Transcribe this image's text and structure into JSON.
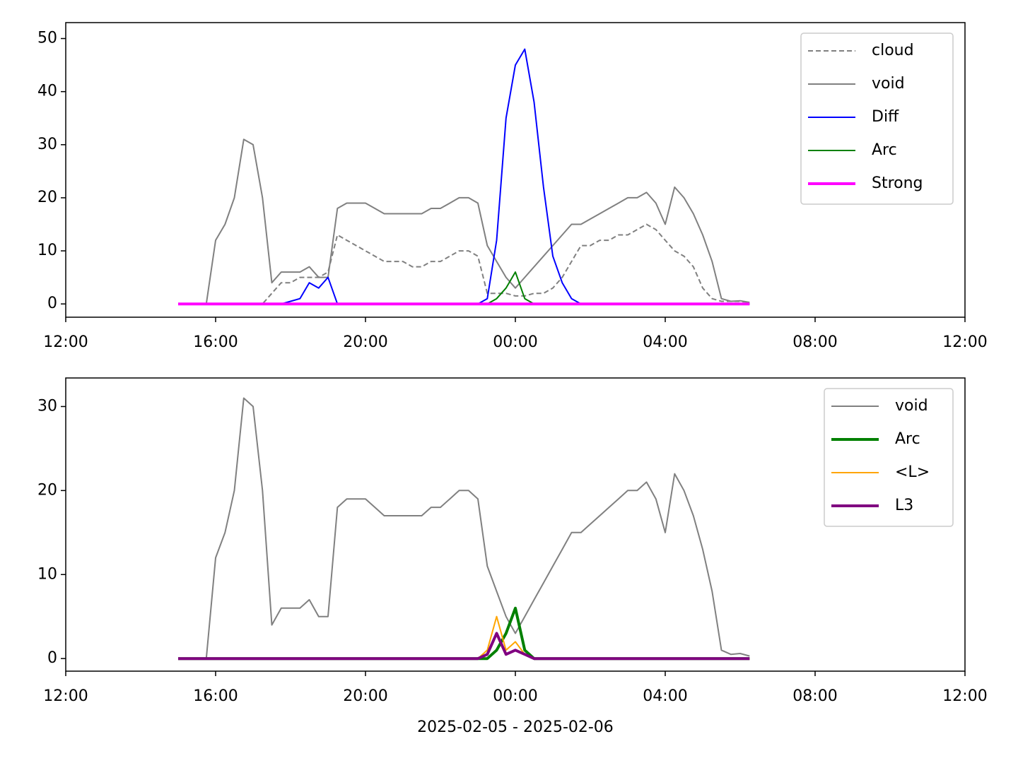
{
  "chart_data": [
    {
      "type": "line",
      "x": [
        15.0,
        15.25,
        15.5,
        15.75,
        16.0,
        16.25,
        16.5,
        16.75,
        17.0,
        17.25,
        17.5,
        17.75,
        18.0,
        18.25,
        18.5,
        18.75,
        19.0,
        19.25,
        19.5,
        19.75,
        20.0,
        20.25,
        20.5,
        20.75,
        21.0,
        21.25,
        21.5,
        21.75,
        22.0,
        22.25,
        22.5,
        22.75,
        23.0,
        23.25,
        23.5,
        23.75,
        24.0,
        24.25,
        24.5,
        24.75,
        25.0,
        25.25,
        25.5,
        25.75,
        26.0,
        26.25,
        26.5,
        26.75,
        27.0,
        27.25,
        27.5,
        27.75,
        28.0,
        28.25,
        28.5,
        28.75,
        29.0,
        29.25,
        29.5,
        29.75,
        30.0,
        30.25
      ],
      "xlim": [
        12,
        36
      ],
      "xticks": [
        {
          "value": 12,
          "label": "12:00"
        },
        {
          "value": 16,
          "label": "16:00"
        },
        {
          "value": 20,
          "label": "20:00"
        },
        {
          "value": 24,
          "label": "00:00"
        },
        {
          "value": 28,
          "label": "04:00"
        },
        {
          "value": 32,
          "label": "08:00"
        },
        {
          "value": 36,
          "label": "12:00"
        }
      ],
      "ylim": [
        -2.5,
        53
      ],
      "yticks": [
        0,
        10,
        20,
        30,
        40,
        50
      ],
      "legend": "upper right",
      "series": [
        {
          "name": "cloud",
          "color": "#808080",
          "style": "dashed",
          "width": 2,
          "values": [
            0,
            0,
            0,
            0,
            0,
            0,
            0,
            0,
            0,
            0,
            2,
            4,
            4,
            5,
            5,
            5,
            6,
            13,
            12,
            11,
            10,
            9,
            8,
            8,
            8,
            7,
            7,
            8,
            8,
            9,
            10,
            10,
            9,
            2,
            2,
            2,
            1.5,
            1.5,
            2,
            2,
            3,
            5,
            8,
            11,
            11,
            12,
            12,
            13,
            13,
            14,
            15,
            14,
            12,
            10,
            9,
            7,
            3,
            1,
            0.5,
            0.5,
            0.5,
            0.3
          ]
        },
        {
          "name": "void",
          "color": "#808080",
          "style": "solid",
          "width": 2,
          "values": [
            0,
            0,
            0,
            0,
            12,
            15,
            20,
            31,
            30,
            20,
            4,
            6,
            6,
            6,
            7,
            5,
            5,
            18,
            19,
            19,
            19,
            18,
            17,
            17,
            17,
            17,
            17,
            18,
            18,
            19,
            20,
            20,
            19,
            11,
            8,
            5,
            3,
            5,
            7,
            9,
            11,
            13,
            15,
            15,
            16,
            17,
            18,
            19,
            20,
            20,
            21,
            19,
            15,
            22,
            20,
            17,
            13,
            8,
            1,
            0.5,
            0.6,
            0.3
          ]
        },
        {
          "name": "Diff",
          "color": "#0000ff",
          "style": "solid",
          "width": 2,
          "values": [
            0,
            0,
            0,
            0,
            0,
            0,
            0,
            0,
            0,
            0,
            0,
            0,
            0.5,
            1,
            4,
            3,
            5,
            0,
            0,
            0,
            0,
            0,
            0,
            0,
            0,
            0,
            0,
            0,
            0,
            0,
            0,
            0,
            0,
            1,
            12,
            35,
            45,
            48,
            38,
            22,
            9,
            4,
            1,
            0,
            0,
            0,
            0,
            0,
            0,
            0,
            0,
            0,
            0,
            0,
            0,
            0,
            0,
            0,
            0,
            0,
            0,
            0
          ]
        },
        {
          "name": "Arc",
          "color": "#008000",
          "style": "solid",
          "width": 2,
          "values": [
            0,
            0,
            0,
            0,
            0,
            0,
            0,
            0,
            0,
            0,
            0,
            0,
            0,
            0,
            0,
            0,
            0,
            0,
            0,
            0,
            0,
            0,
            0,
            0,
            0,
            0,
            0,
            0,
            0,
            0,
            0,
            0,
            0,
            0,
            1,
            3,
            6,
            1,
            0,
            0,
            0,
            0,
            0,
            0,
            0,
            0,
            0,
            0,
            0,
            0,
            0,
            0,
            0,
            0,
            0,
            0,
            0,
            0,
            0,
            0,
            0,
            0
          ]
        },
        {
          "name": "Strong",
          "color": "#ff00ff",
          "style": "solid",
          "width": 4,
          "values": [
            0,
            0,
            0,
            0,
            0,
            0,
            0,
            0,
            0,
            0,
            0,
            0,
            0,
            0,
            0,
            0,
            0,
            0,
            0,
            0,
            0,
            0,
            0,
            0,
            0,
            0,
            0,
            0,
            0,
            0,
            0,
            0,
            0,
            0,
            0,
            0,
            0,
            0,
            0,
            0,
            0,
            0,
            0,
            0,
            0,
            0,
            0,
            0,
            0,
            0,
            0,
            0,
            0,
            0,
            0,
            0,
            0,
            0,
            0,
            0,
            0,
            0
          ]
        }
      ]
    },
    {
      "type": "line",
      "x": [
        15.0,
        15.25,
        15.5,
        15.75,
        16.0,
        16.25,
        16.5,
        16.75,
        17.0,
        17.25,
        17.5,
        17.75,
        18.0,
        18.25,
        18.5,
        18.75,
        19.0,
        19.25,
        19.5,
        19.75,
        20.0,
        20.25,
        20.5,
        20.75,
        21.0,
        21.25,
        21.5,
        21.75,
        22.0,
        22.25,
        22.5,
        22.75,
        23.0,
        23.25,
        23.5,
        23.75,
        24.0,
        24.25,
        24.5,
        24.75,
        25.0,
        25.25,
        25.5,
        25.75,
        26.0,
        26.25,
        26.5,
        26.75,
        27.0,
        27.25,
        27.5,
        27.75,
        28.0,
        28.25,
        28.5,
        28.75,
        29.0,
        29.25,
        29.5,
        29.75,
        30.0,
        30.25
      ],
      "xlim": [
        12,
        36
      ],
      "xticks": [
        {
          "value": 12,
          "label": "12:00"
        },
        {
          "value": 16,
          "label": "16:00"
        },
        {
          "value": 20,
          "label": "20:00"
        },
        {
          "value": 24,
          "label": "00:00"
        },
        {
          "value": 28,
          "label": "04:00"
        },
        {
          "value": 32,
          "label": "08:00"
        },
        {
          "value": 36,
          "label": "12:00"
        }
      ],
      "xlabel": "2025-02-05 - 2025-02-06",
      "ylim": [
        -1.5,
        33.4
      ],
      "yticks": [
        0,
        10,
        20,
        30
      ],
      "legend": "upper right",
      "series": [
        {
          "name": "void",
          "color": "#808080",
          "style": "solid",
          "width": 2,
          "values": [
            0,
            0,
            0,
            0,
            12,
            15,
            20,
            31,
            30,
            20,
            4,
            6,
            6,
            6,
            7,
            5,
            5,
            18,
            19,
            19,
            19,
            18,
            17,
            17,
            17,
            17,
            17,
            18,
            18,
            19,
            20,
            20,
            19,
            11,
            8,
            5,
            3,
            5,
            7,
            9,
            11,
            13,
            15,
            15,
            16,
            17,
            18,
            19,
            20,
            20,
            21,
            19,
            15,
            22,
            20,
            17,
            13,
            8,
            1,
            0.5,
            0.6,
            0.3
          ]
        },
        {
          "name": "Arc",
          "color": "#008000",
          "style": "solid",
          "width": 4,
          "values": [
            0,
            0,
            0,
            0,
            0,
            0,
            0,
            0,
            0,
            0,
            0,
            0,
            0,
            0,
            0,
            0,
            0,
            0,
            0,
            0,
            0,
            0,
            0,
            0,
            0,
            0,
            0,
            0,
            0,
            0,
            0,
            0,
            0,
            0,
            1,
            3,
            6,
            1,
            0,
            0,
            0,
            0,
            0,
            0,
            0,
            0,
            0,
            0,
            0,
            0,
            0,
            0,
            0,
            0,
            0,
            0,
            0,
            0,
            0,
            0,
            0,
            0
          ]
        },
        {
          "name": "<L>",
          "color": "#ffa500",
          "style": "solid",
          "width": 2,
          "values": [
            0,
            0,
            0,
            0,
            0,
            0,
            0,
            0,
            0,
            0,
            0,
            0,
            0,
            0,
            0,
            0,
            0,
            0,
            0,
            0,
            0,
            0,
            0,
            0,
            0,
            0,
            0,
            0,
            0,
            0,
            0,
            0,
            0,
            1,
            5,
            1,
            2,
            0.5,
            0,
            0,
            0,
            0,
            0,
            0,
            0,
            0,
            0,
            0,
            0,
            0,
            0,
            0,
            0,
            0,
            0,
            0,
            0,
            0,
            0,
            0,
            0,
            0
          ]
        },
        {
          "name": "L3",
          "color": "#800080",
          "style": "solid",
          "width": 4,
          "values": [
            0,
            0,
            0,
            0,
            0,
            0,
            0,
            0,
            0,
            0,
            0,
            0,
            0,
            0,
            0,
            0,
            0,
            0,
            0,
            0,
            0,
            0,
            0,
            0,
            0,
            0,
            0,
            0,
            0,
            0,
            0,
            0,
            0,
            0.5,
            3,
            0.5,
            1,
            0.5,
            0,
            0,
            0,
            0,
            0,
            0,
            0,
            0,
            0,
            0,
            0,
            0,
            0,
            0,
            0,
            0,
            0,
            0,
            0,
            0,
            0,
            0,
            0,
            0
          ]
        }
      ]
    }
  ]
}
